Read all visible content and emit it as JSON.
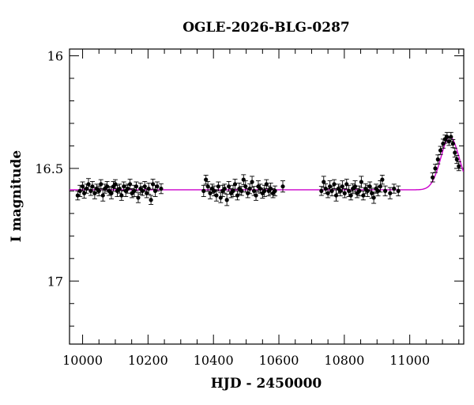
{
  "chart_data": {
    "type": "scatter",
    "title": "OGLE-2026-BLG-0287",
    "xlabel": "HJD - 2450000",
    "ylabel": "I magnitude",
    "xlim": [
      9960,
      11165
    ],
    "ylim": [
      17.28,
      15.97
    ],
    "y_inverted": true,
    "x_ticks": [
      10000,
      10200,
      10400,
      10600,
      10800,
      11000
    ],
    "x_tick_labels": [
      "10000",
      "10200",
      "10400",
      "10600",
      "10800",
      "11000"
    ],
    "y_ticks": [
      16,
      16.5,
      17
    ],
    "y_tick_labels": [
      "16",
      "16.5",
      "17"
    ],
    "x_minor_step": 50,
    "y_minor_step": 0.1,
    "grid": false,
    "legend": "none",
    "colors": {
      "points": "#000000",
      "model": "#cc00cc"
    },
    "model": {
      "name": "",
      "baseline": 16.595,
      "peak_time": 11123,
      "peak_mag": 16.36,
      "sigma": 28,
      "x": [
        9960,
        10500,
        11000,
        11040,
        11060,
        11080,
        11095,
        11105,
        11115,
        11123,
        11131,
        11140,
        11150,
        11165
      ],
      "y": [
        16.595,
        16.595,
        16.592,
        16.585,
        16.57,
        16.53,
        16.48,
        16.43,
        16.39,
        16.36,
        16.37,
        16.41,
        16.47,
        16.55
      ]
    },
    "series": [
      {
        "name": "",
        "x": [
          9985,
          9992,
          10000,
          10005,
          10012,
          10018,
          10025,
          10030,
          10037,
          10043,
          10050,
          10056,
          10062,
          10068,
          10075,
          10081,
          10088,
          10094,
          10100,
          10106,
          10113,
          10119,
          10126,
          10132,
          10138,
          10145,
          10151,
          10158,
          10164,
          10170,
          10177,
          10183,
          10190,
          10196,
          10202,
          10209,
          10215,
          10222,
          10228,
          10240,
          10370,
          10377,
          10383,
          10390,
          10396,
          10402,
          10409,
          10415,
          10422,
          10428,
          10434,
          10441,
          10447,
          10454,
          10460,
          10466,
          10473,
          10479,
          10486,
          10492,
          10498,
          10505,
          10511,
          10518,
          10524,
          10530,
          10537,
          10543,
          10550,
          10556,
          10562,
          10569,
          10575,
          10582,
          10588,
          10612,
          10730,
          10737,
          10743,
          10750,
          10756,
          10762,
          10769,
          10775,
          10782,
          10788,
          10794,
          10801,
          10807,
          10814,
          10820,
          10826,
          10833,
          10839,
          10846,
          10852,
          10858,
          10865,
          10871,
          10878,
          10884,
          10890,
          10897,
          10903,
          10910,
          10916,
          10925,
          10940,
          10952,
          10965,
          11070,
          11078,
          11086,
          11094,
          11102,
          11108,
          11114,
          11120,
          11126,
          11132,
          11138,
          11144,
          11150
        ],
        "y": [
          16.62,
          16.6,
          16.58,
          16.61,
          16.59,
          16.57,
          16.6,
          16.58,
          16.61,
          16.59,
          16.6,
          16.57,
          16.62,
          16.59,
          16.58,
          16.6,
          16.61,
          16.58,
          16.57,
          16.6,
          16.59,
          16.62,
          16.58,
          16.6,
          16.59,
          16.57,
          16.61,
          16.6,
          16.58,
          16.63,
          16.59,
          16.6,
          16.58,
          16.61,
          16.59,
          16.64,
          16.57,
          16.6,
          16.58,
          16.59,
          16.6,
          16.55,
          16.58,
          16.61,
          16.59,
          16.6,
          16.62,
          16.58,
          16.63,
          16.6,
          16.59,
          16.64,
          16.58,
          16.61,
          16.6,
          16.57,
          16.62,
          16.59,
          16.6,
          16.55,
          16.58,
          16.61,
          16.59,
          16.56,
          16.6,
          16.62,
          16.58,
          16.59,
          16.61,
          16.6,
          16.57,
          16.6,
          16.59,
          16.61,
          16.6,
          16.58,
          16.6,
          16.56,
          16.59,
          16.61,
          16.58,
          16.6,
          16.57,
          16.62,
          16.59,
          16.6,
          16.58,
          16.61,
          16.57,
          16.6,
          16.62,
          16.59,
          16.58,
          16.61,
          16.6,
          16.56,
          16.62,
          16.59,
          16.6,
          16.58,
          16.61,
          16.63,
          16.59,
          16.6,
          16.58,
          16.55,
          16.6,
          16.61,
          16.59,
          16.6,
          16.54,
          16.5,
          16.46,
          16.42,
          16.39,
          16.37,
          16.36,
          16.38,
          16.36,
          16.39,
          16.43,
          16.46,
          16.49
        ],
        "err": [
          0.02,
          0.025,
          0.02,
          0.022,
          0.02,
          0.025,
          0.02,
          0.022,
          0.025,
          0.02,
          0.022,
          0.02,
          0.025,
          0.02,
          0.022,
          0.02,
          0.025,
          0.022,
          0.02,
          0.025,
          0.02,
          0.022,
          0.02,
          0.025,
          0.02,
          0.022,
          0.02,
          0.025,
          0.02,
          0.022,
          0.025,
          0.02,
          0.022,
          0.02,
          0.025,
          0.02,
          0.022,
          0.025,
          0.02,
          0.022,
          0.025,
          0.02,
          0.022,
          0.025,
          0.02,
          0.022,
          0.025,
          0.02,
          0.022,
          0.025,
          0.02,
          0.025,
          0.022,
          0.02,
          0.025,
          0.022,
          0.02,
          0.025,
          0.02,
          0.022,
          0.025,
          0.02,
          0.022,
          0.025,
          0.02,
          0.022,
          0.025,
          0.02,
          0.022,
          0.025,
          0.02,
          0.022,
          0.025,
          0.02,
          0.022,
          0.025,
          0.02,
          0.025,
          0.022,
          0.02,
          0.025,
          0.022,
          0.02,
          0.025,
          0.02,
          0.022,
          0.025,
          0.02,
          0.022,
          0.025,
          0.02,
          0.022,
          0.025,
          0.02,
          0.022,
          0.025,
          0.02,
          0.022,
          0.025,
          0.02,
          0.022,
          0.025,
          0.02,
          0.022,
          0.025,
          0.02,
          0.022,
          0.025,
          0.02,
          0.022,
          0.02,
          0.018,
          0.02,
          0.018,
          0.02,
          0.018,
          0.02,
          0.018,
          0.02,
          0.018,
          0.02,
          0.018,
          0.02
        ]
      }
    ]
  }
}
